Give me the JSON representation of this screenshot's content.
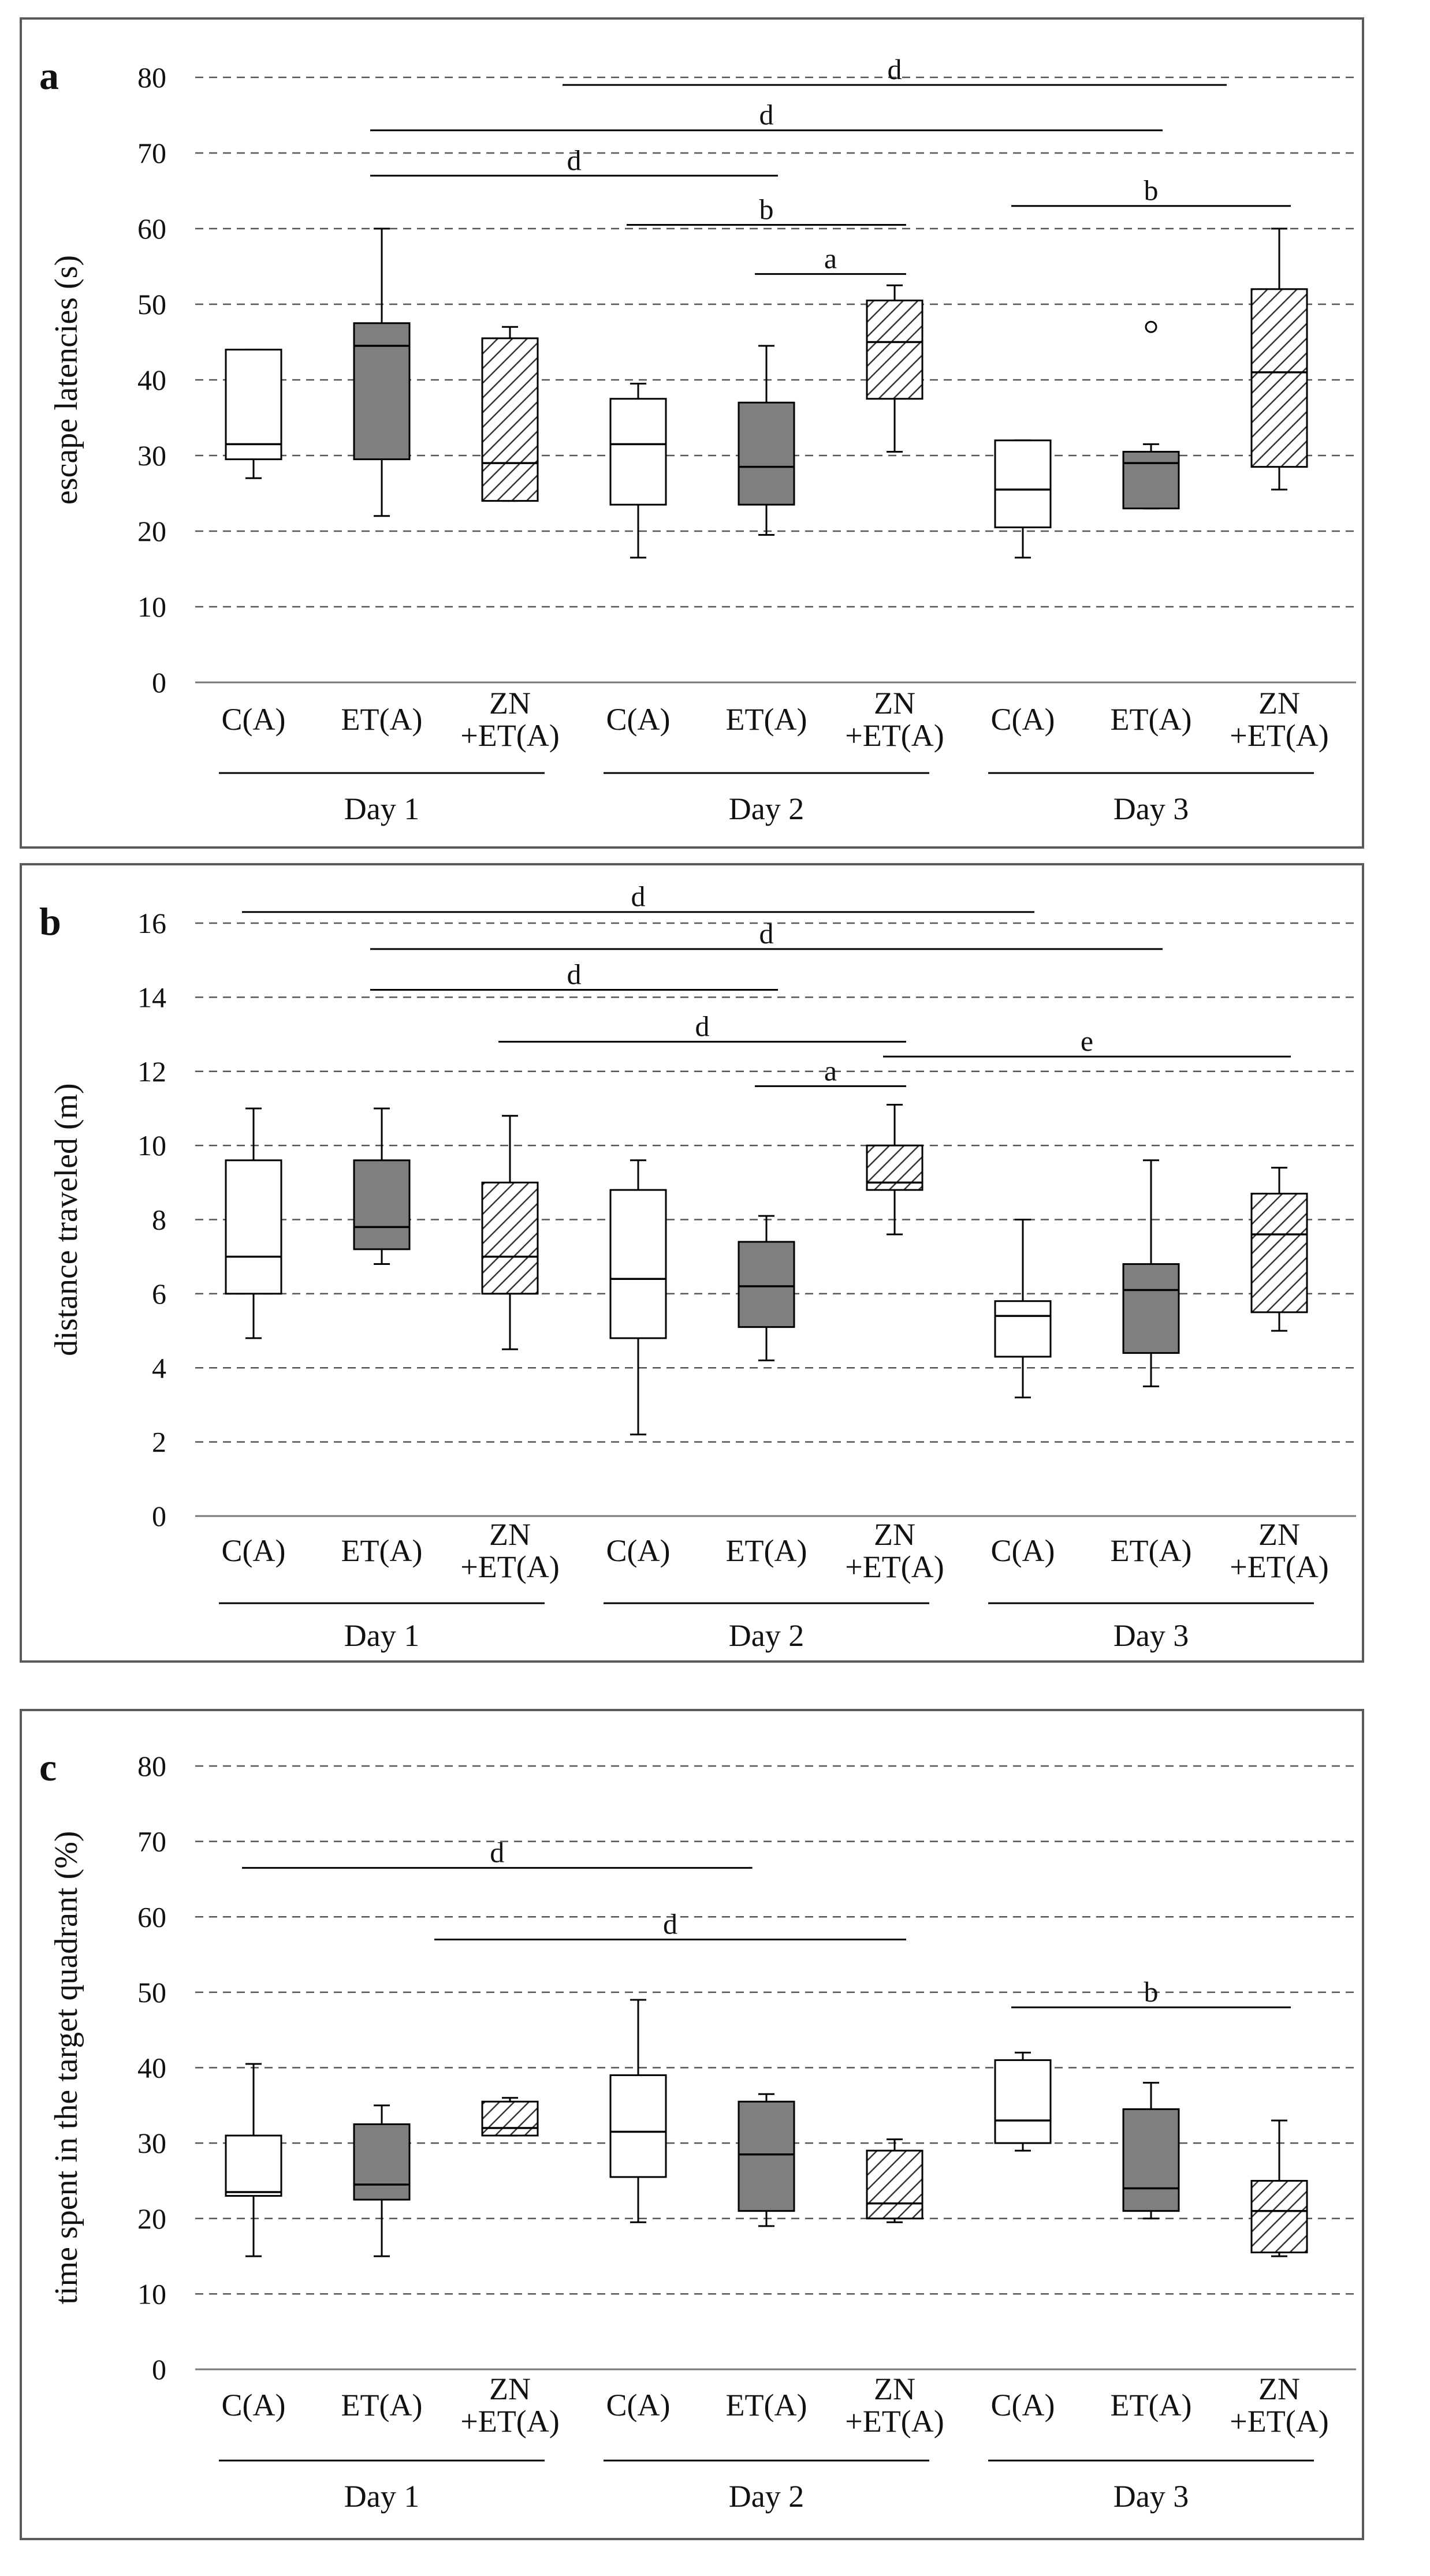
{
  "chart_data": [
    {
      "type": "box",
      "panel_label": "a",
      "ylabel": "escape latencies (s)",
      "ylim": [
        0,
        80
      ],
      "yticks": [
        0,
        10,
        20,
        30,
        40,
        50,
        60,
        70,
        80
      ],
      "categories": [
        "C(A)",
        "ET(A)",
        "ZN\n+ET(A)",
        "C(A)",
        "ET(A)",
        "ZN\n+ET(A)",
        "C(A)",
        "ET(A)",
        "ZN\n+ET(A)"
      ],
      "groups": [
        {
          "label": "Day 1",
          "from": 0,
          "to": 2
        },
        {
          "label": "Day 2",
          "from": 3,
          "to": 5
        },
        {
          "label": "Day 3",
          "from": 6,
          "to": 8
        }
      ],
      "boxes": [
        {
          "fill": "white",
          "min": 27,
          "q1": 29.5,
          "median": 31.5,
          "q3": 44,
          "max": 44
        },
        {
          "fill": "gray",
          "min": 22,
          "q1": 29.5,
          "median": 44.5,
          "q3": 47.5,
          "max": 60
        },
        {
          "fill": "hatch",
          "min": 24,
          "q1": 24,
          "median": 29,
          "q3": 45.5,
          "max": 47
        },
        {
          "fill": "white",
          "min": 16.5,
          "q1": 23.5,
          "median": 31.5,
          "q3": 37.5,
          "max": 39.5
        },
        {
          "fill": "gray",
          "min": 19.5,
          "q1": 23.5,
          "median": 28.5,
          "q3": 37,
          "max": 44.5
        },
        {
          "fill": "hatch",
          "min": 30.5,
          "q1": 37.5,
          "median": 45,
          "q3": 50.5,
          "max": 52.5
        },
        {
          "fill": "white",
          "min": 16.5,
          "q1": 20.5,
          "median": 25.5,
          "q3": 32,
          "max": 32
        },
        {
          "fill": "gray",
          "min": 23,
          "q1": 23,
          "median": 29,
          "q3": 30.5,
          "max": 31.5
        },
        {
          "fill": "hatch",
          "min": 25.5,
          "q1": 28.5,
          "median": 41,
          "q3": 52,
          "max": 60
        }
      ],
      "outliers": [
        {
          "index": 7,
          "value": 47,
          "shape": "circle"
        }
      ],
      "significance": [
        {
          "label": "d",
          "from": 2.5,
          "to": 7.5,
          "y": 79
        },
        {
          "label": "d",
          "from": 1,
          "to": 7,
          "y": 73
        },
        {
          "label": "d",
          "from": 1,
          "to": 4,
          "y": 67
        },
        {
          "label": "b",
          "from": 3,
          "to": 5,
          "y": 60.5
        },
        {
          "label": "a",
          "from": 4,
          "to": 5,
          "y": 54
        },
        {
          "label": "b",
          "from": 6,
          "to": 8,
          "y": 63
        }
      ]
    },
    {
      "type": "box",
      "panel_label": "b",
      "ylabel": "distance traveled (m)",
      "ylim": [
        0,
        16
      ],
      "yticks": [
        0,
        2,
        4,
        6,
        8,
        10,
        12,
        14,
        16
      ],
      "categories": [
        "C(A)",
        "ET(A)",
        "ZN\n+ET(A)",
        "C(A)",
        "ET(A)",
        "ZN\n+ET(A)",
        "C(A)",
        "ET(A)",
        "ZN\n+ET(A)"
      ],
      "groups": [
        {
          "label": "Day 1",
          "from": 0,
          "to": 2
        },
        {
          "label": "Day 2",
          "from": 3,
          "to": 5
        },
        {
          "label": "Day 3",
          "from": 6,
          "to": 8
        }
      ],
      "boxes": [
        {
          "fill": "white",
          "min": 4.8,
          "q1": 6.0,
          "median": 7.0,
          "q3": 9.6,
          "max": 11.0
        },
        {
          "fill": "gray",
          "min": 6.8,
          "q1": 7.2,
          "median": 7.8,
          "q3": 9.6,
          "max": 11.0
        },
        {
          "fill": "hatch",
          "min": 4.5,
          "q1": 6.0,
          "median": 7.0,
          "q3": 9.0,
          "max": 10.8
        },
        {
          "fill": "white",
          "min": 2.2,
          "q1": 4.8,
          "median": 6.4,
          "q3": 8.8,
          "max": 9.6
        },
        {
          "fill": "gray",
          "min": 4.2,
          "q1": 5.1,
          "median": 6.2,
          "q3": 7.4,
          "max": 8.1
        },
        {
          "fill": "hatch",
          "min": 7.6,
          "q1": 8.8,
          "median": 9.0,
          "q3": 10.0,
          "max": 11.1
        },
        {
          "fill": "white",
          "min": 3.2,
          "q1": 4.3,
          "median": 5.4,
          "q3": 5.8,
          "max": 8.0
        },
        {
          "fill": "gray",
          "min": 3.5,
          "q1": 4.4,
          "median": 6.1,
          "q3": 6.8,
          "max": 9.6
        },
        {
          "fill": "hatch",
          "min": 5.0,
          "q1": 5.5,
          "median": 7.6,
          "q3": 8.7,
          "max": 9.4
        }
      ],
      "outliers": [],
      "significance": [
        {
          "label": "d",
          "from": 0,
          "to": 6,
          "y": 16.3
        },
        {
          "label": "d",
          "from": 1,
          "to": 7,
          "y": 15.3
        },
        {
          "label": "d",
          "from": 1,
          "to": 4,
          "y": 14.2
        },
        {
          "label": "d",
          "from": 2,
          "to": 5,
          "y": 12.8
        },
        {
          "label": "a",
          "from": 4,
          "to": 5,
          "y": 11.6
        },
        {
          "label": "e",
          "from": 5,
          "to": 8,
          "y": 12.4
        }
      ]
    },
    {
      "type": "box",
      "panel_label": "c",
      "ylabel": "time spent in the target quadrant (%)",
      "ylim": [
        0,
        80
      ],
      "yticks": [
        0,
        10,
        20,
        30,
        40,
        50,
        60,
        70,
        80
      ],
      "categories": [
        "C(A)",
        "ET(A)",
        "ZN\n+ET(A)",
        "C(A)",
        "ET(A)",
        "ZN\n+ET(A)",
        "C(A)",
        "ET(A)",
        "ZN\n+ET(A)"
      ],
      "groups": [
        {
          "label": "Day 1",
          "from": 0,
          "to": 2
        },
        {
          "label": "Day 2",
          "from": 3,
          "to": 5
        },
        {
          "label": "Day 3",
          "from": 6,
          "to": 8
        }
      ],
      "boxes": [
        {
          "fill": "white",
          "min": 15,
          "q1": 23,
          "median": 23.5,
          "q3": 31,
          "max": 40.5
        },
        {
          "fill": "gray",
          "min": 15,
          "q1": 22.5,
          "median": 24.5,
          "q3": 32.5,
          "max": 35
        },
        {
          "fill": "hatch",
          "min": 31,
          "q1": 31,
          "median": 32,
          "q3": 35.5,
          "max": 36
        },
        {
          "fill": "white",
          "min": 19.5,
          "q1": 25.5,
          "median": 31.5,
          "q3": 39,
          "max": 49
        },
        {
          "fill": "gray",
          "min": 19,
          "q1": 21,
          "median": 28.5,
          "q3": 35.5,
          "max": 36.5
        },
        {
          "fill": "hatch",
          "min": 19.5,
          "q1": 20,
          "median": 22,
          "q3": 29,
          "max": 30.5
        },
        {
          "fill": "white",
          "min": 29,
          "q1": 30,
          "median": 33,
          "q3": 41,
          "max": 42
        },
        {
          "fill": "gray",
          "min": 20,
          "q1": 21,
          "median": 24,
          "q3": 34.5,
          "max": 38
        },
        {
          "fill": "hatch",
          "min": 15,
          "q1": 15.5,
          "median": 21,
          "q3": 25,
          "max": 33
        }
      ],
      "outliers": [],
      "significance": [
        {
          "label": "d",
          "from": 0,
          "to": 3.8,
          "y": 66.5
        },
        {
          "label": "d",
          "from": 1.5,
          "to": 5,
          "y": 57
        },
        {
          "label": "b",
          "from": 6,
          "to": 8,
          "y": 48
        }
      ]
    }
  ]
}
